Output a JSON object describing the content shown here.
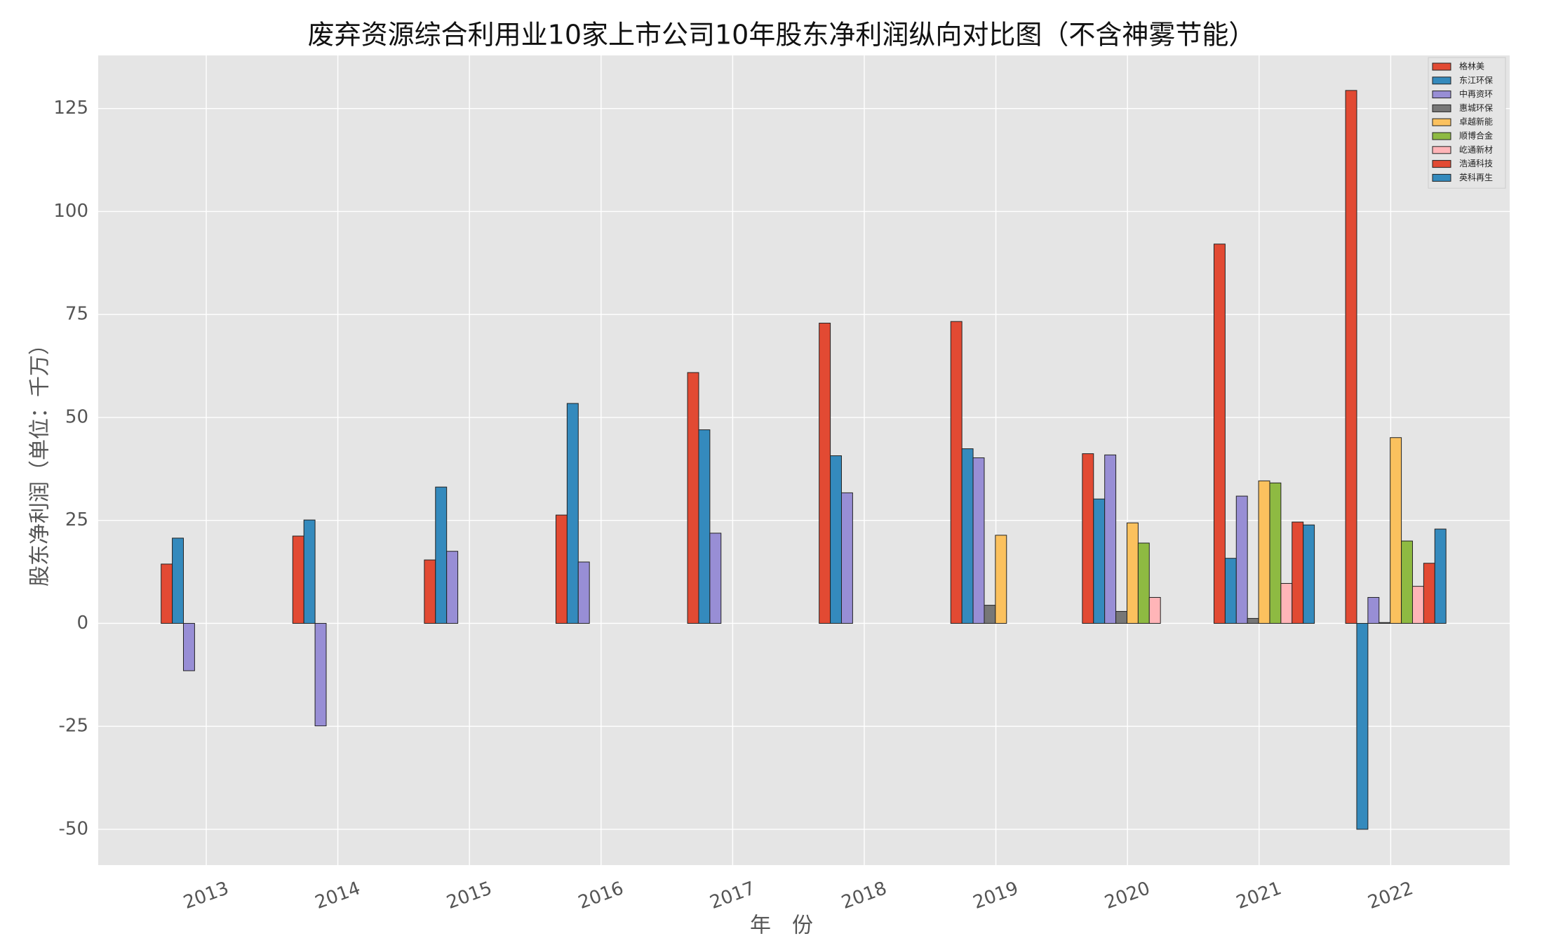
{
  "chart_data": {
    "type": "bar",
    "title": "废弃资源综合利用业10家上市公司10年股东净利润纵向对比图（不含神雾节能）",
    "x_label": "年　份",
    "y_label": "股东净利润（单位：千万）",
    "categories": [
      "2013",
      "2014",
      "2015",
      "2016",
      "2017",
      "2018",
      "2019",
      "2020",
      "2021",
      "2022"
    ],
    "series": [
      {
        "name": "格林美",
        "color": "#E24A33",
        "values": [
          14.4,
          21.2,
          15.4,
          26.3,
          60.9,
          72.9,
          73.3,
          41.2,
          92.1,
          129.4
        ]
      },
      {
        "name": "东江环保",
        "color": "#348ABD",
        "values": [
          20.7,
          25.1,
          33.1,
          53.4,
          47.0,
          40.7,
          42.4,
          30.2,
          15.8,
          -50.0
        ]
      },
      {
        "name": "中再资环",
        "color": "#988ED5",
        "values": [
          -11.5,
          -24.9,
          17.5,
          14.9,
          21.9,
          31.7,
          40.2,
          40.9,
          30.9,
          6.3
        ]
      },
      {
        "name": "惠城环保",
        "color": "#777777",
        "values": [
          null,
          null,
          null,
          null,
          null,
          null,
          4.4,
          2.9,
          1.2,
          0.2
        ]
      },
      {
        "name": "卓越新能",
        "color": "#FBC15E",
        "values": [
          null,
          null,
          null,
          null,
          null,
          null,
          21.4,
          24.4,
          34.6,
          45.1
        ]
      },
      {
        "name": "顺博合金",
        "color": "#8EBA42",
        "values": [
          null,
          null,
          null,
          null,
          null,
          null,
          null,
          19.5,
          34.1,
          20.0
        ]
      },
      {
        "name": "屹通新材",
        "color": "#FFB5B8",
        "values": [
          null,
          null,
          null,
          null,
          null,
          null,
          null,
          6.3,
          9.7,
          9.0
        ]
      },
      {
        "name": "浩通科技",
        "color": "#E24A33",
        "values": [
          null,
          null,
          null,
          null,
          null,
          null,
          null,
          null,
          24.6,
          14.6
        ]
      },
      {
        "name": "英科再生",
        "color": "#348ABD",
        "values": [
          null,
          null,
          null,
          null,
          null,
          null,
          null,
          null,
          23.9,
          22.9
        ]
      }
    ],
    "ylim": [
      -58.7,
      137.9
    ],
    "yticks": [
      -50,
      -25,
      0,
      25,
      50,
      75,
      100,
      125
    ],
    "grid": true,
    "legend": "upper right"
  }
}
